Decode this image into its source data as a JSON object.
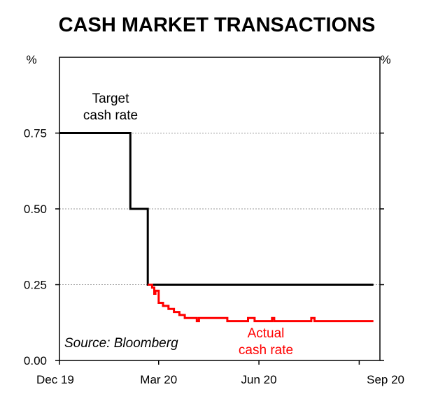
{
  "chart_data": {
    "type": "line",
    "title": "CASH MARKET TRANSACTIONS",
    "y_unit_left": "%",
    "y_unit_right": "%",
    "xlim": [
      "2019-12-01",
      "2020-09-20"
    ],
    "x_ticks": [
      {
        "date": "2019-12-01",
        "label": "Dec 19"
      },
      {
        "date": "2020-03-01",
        "label": "Mar 20"
      },
      {
        "date": "2020-06-01",
        "label": "Jun 20"
      },
      {
        "date": "2020-09-01",
        "label": "Sep 20"
      }
    ],
    "ylim": [
      0,
      1.0
    ],
    "y_ticks": [
      {
        "value": 0,
        "label": "0.00"
      },
      {
        "value": 0.25,
        "label": "0.25"
      },
      {
        "value": 0.5,
        "label": "0.50"
      },
      {
        "value": 0.75,
        "label": "0.75"
      }
    ],
    "grid": "horizontal dotted",
    "source": "Source: Bloomberg",
    "series": [
      {
        "name": "Target cash rate",
        "label_lines": [
          "Target",
          "cash rate"
        ],
        "color": "#000000",
        "step": true,
        "points": [
          {
            "x": "2019-12-01",
            "y": 0.75
          },
          {
            "x": "2020-02-03",
            "y": 0.75
          },
          {
            "x": "2020-02-04",
            "y": 0.5
          },
          {
            "x": "2020-02-19",
            "y": 0.5
          },
          {
            "x": "2020-02-20",
            "y": 0.25
          },
          {
            "x": "2020-09-14",
            "y": 0.25
          }
        ]
      },
      {
        "name": "Actual cash rate",
        "label_lines": [
          "Actual",
          "cash rate"
        ],
        "color": "#ff0000",
        "step": true,
        "points": [
          {
            "x": "2020-02-20",
            "y": 0.25
          },
          {
            "x": "2020-02-24",
            "y": 0.24
          },
          {
            "x": "2020-02-26",
            "y": 0.22
          },
          {
            "x": "2020-02-27",
            "y": 0.23
          },
          {
            "x": "2020-03-01",
            "y": 0.19
          },
          {
            "x": "2020-03-05",
            "y": 0.18
          },
          {
            "x": "2020-03-10",
            "y": 0.17
          },
          {
            "x": "2020-03-15",
            "y": 0.16
          },
          {
            "x": "2020-03-20",
            "y": 0.15
          },
          {
            "x": "2020-03-25",
            "y": 0.14
          },
          {
            "x": "2020-03-31",
            "y": 0.14
          },
          {
            "x": "2020-04-05",
            "y": 0.13
          },
          {
            "x": "2020-04-07",
            "y": 0.14
          },
          {
            "x": "2020-04-20",
            "y": 0.14
          },
          {
            "x": "2020-05-03",
            "y": 0.13
          },
          {
            "x": "2020-05-20",
            "y": 0.13
          },
          {
            "x": "2020-05-22",
            "y": 0.14
          },
          {
            "x": "2020-05-26",
            "y": 0.14
          },
          {
            "x": "2020-05-28",
            "y": 0.13
          },
          {
            "x": "2020-06-05",
            "y": 0.13
          },
          {
            "x": "2020-06-13",
            "y": 0.14
          },
          {
            "x": "2020-06-15",
            "y": 0.13
          },
          {
            "x": "2020-07-17",
            "y": 0.13
          },
          {
            "x": "2020-07-19",
            "y": 0.14
          },
          {
            "x": "2020-07-22",
            "y": 0.13
          },
          {
            "x": "2020-09-14",
            "y": 0.13
          }
        ]
      }
    ]
  }
}
